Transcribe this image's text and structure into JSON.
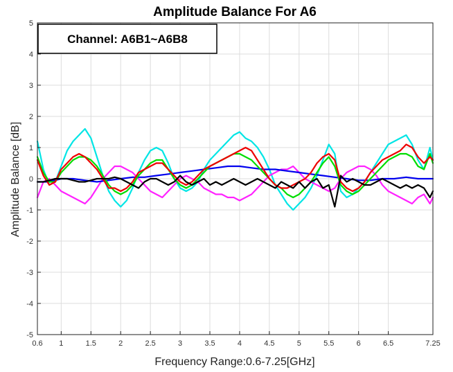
{
  "chart_data": {
    "type": "line",
    "title": "Amplitude Balance For A6",
    "xlabel": "Frequency Range:0.6-7.25[GHz]",
    "ylabel": "Amplitude Balance [dB]",
    "annotation": "Channel: A6B1~A6B8",
    "xlim": [
      0.6,
      7.25
    ],
    "ylim": [
      -5,
      5
    ],
    "grid": true,
    "x_ticks": [
      0.6,
      1,
      1.5,
      2,
      2.5,
      3,
      3.5,
      4,
      4.5,
      5,
      5.5,
      6,
      6.5,
      7.25
    ],
    "x_tick_labels": [
      "0.6",
      "1",
      "1.5",
      "2",
      "2.5",
      "3",
      "3.5",
      "4",
      "4.5",
      "5",
      "5.5",
      "6",
      "6.5",
      "7.25"
    ],
    "y_ticks": [
      -5,
      -4,
      -3,
      -2,
      -1,
      0,
      1,
      2,
      3,
      4,
      5
    ],
    "y_tick_labels": [
      "-5",
      "-4",
      "-3",
      "-2",
      "-1",
      "0",
      "1",
      "2",
      "3",
      "4",
      "5"
    ],
    "series": [
      {
        "color": "#00e5e5",
        "x": [
          0.6,
          0.7,
          0.8,
          0.9,
          1.0,
          1.1,
          1.2,
          1.3,
          1.4,
          1.5,
          1.6,
          1.7,
          1.8,
          1.9,
          2.0,
          2.1,
          2.2,
          2.3,
          2.4,
          2.5,
          2.6,
          2.7,
          2.8,
          2.9,
          3.0,
          3.1,
          3.2,
          3.3,
          3.4,
          3.5,
          3.6,
          3.7,
          3.8,
          3.9,
          4.0,
          4.1,
          4.2,
          4.3,
          4.4,
          4.5,
          4.6,
          4.7,
          4.8,
          4.9,
          5.0,
          5.1,
          5.2,
          5.3,
          5.4,
          5.5,
          5.6,
          5.7,
          5.8,
          5.9,
          6.0,
          6.1,
          6.2,
          6.3,
          6.4,
          6.5,
          6.6,
          6.7,
          6.8,
          6.9,
          7.0,
          7.1,
          7.2,
          7.25
        ],
        "y": [
          1.2,
          0.3,
          -0.2,
          -0.1,
          0.4,
          0.9,
          1.2,
          1.4,
          1.6,
          1.3,
          0.7,
          0.1,
          -0.4,
          -0.7,
          -0.9,
          -0.7,
          -0.3,
          0.2,
          0.6,
          0.9,
          1.0,
          0.9,
          0.5,
          0.0,
          -0.3,
          -0.4,
          -0.3,
          -0.1,
          0.3,
          0.6,
          0.8,
          1.0,
          1.2,
          1.4,
          1.5,
          1.3,
          1.2,
          1.0,
          0.7,
          0.3,
          -0.2,
          -0.5,
          -0.8,
          -1.0,
          -0.8,
          -0.6,
          -0.3,
          0.1,
          0.6,
          1.1,
          0.8,
          -0.4,
          -0.6,
          -0.5,
          -0.3,
          -0.1,
          0.2,
          0.5,
          0.8,
          1.1,
          1.2,
          1.3,
          1.4,
          1.1,
          0.6,
          0.3,
          1.0,
          0.6
        ]
      },
      {
        "color": "#ff22ff",
        "x": [
          0.6,
          0.7,
          0.8,
          0.9,
          1.0,
          1.1,
          1.2,
          1.3,
          1.4,
          1.5,
          1.6,
          1.7,
          1.8,
          1.9,
          2.0,
          2.1,
          2.2,
          2.3,
          2.4,
          2.5,
          2.6,
          2.7,
          2.8,
          2.9,
          3.0,
          3.1,
          3.2,
          3.3,
          3.4,
          3.5,
          3.6,
          3.7,
          3.8,
          3.9,
          4.0,
          4.1,
          4.2,
          4.3,
          4.4,
          4.5,
          4.6,
          4.7,
          4.8,
          4.9,
          5.0,
          5.1,
          5.2,
          5.3,
          5.4,
          5.5,
          5.6,
          5.7,
          5.8,
          5.9,
          6.0,
          6.1,
          6.2,
          6.3,
          6.4,
          6.5,
          6.6,
          6.7,
          6.8,
          6.9,
          7.0,
          7.1,
          7.2,
          7.25
        ],
        "y": [
          -0.6,
          -0.1,
          0.0,
          -0.2,
          -0.4,
          -0.5,
          -0.6,
          -0.7,
          -0.8,
          -0.6,
          -0.3,
          0.0,
          0.2,
          0.4,
          0.4,
          0.3,
          0.2,
          0.0,
          -0.2,
          -0.4,
          -0.5,
          -0.6,
          -0.4,
          -0.2,
          0.0,
          0.1,
          0.0,
          -0.1,
          -0.3,
          -0.4,
          -0.5,
          -0.5,
          -0.6,
          -0.6,
          -0.7,
          -0.6,
          -0.5,
          -0.3,
          -0.1,
          0.1,
          0.2,
          0.3,
          0.3,
          0.4,
          0.2,
          0.0,
          -0.1,
          -0.2,
          -0.3,
          -0.4,
          -0.3,
          0.0,
          0.2,
          0.3,
          0.4,
          0.4,
          0.3,
          0.1,
          -0.2,
          -0.4,
          -0.5,
          -0.6,
          -0.7,
          -0.8,
          -0.6,
          -0.5,
          -0.8,
          -0.6
        ]
      },
      {
        "color": "#0000ee",
        "x": [
          0.6,
          0.8,
          1.0,
          1.2,
          1.4,
          1.6,
          1.8,
          2.0,
          2.2,
          2.4,
          2.6,
          2.8,
          3.0,
          3.2,
          3.4,
          3.6,
          3.8,
          4.0,
          4.2,
          4.4,
          4.6,
          4.8,
          5.0,
          5.2,
          5.4,
          5.6,
          5.8,
          6.0,
          6.2,
          6.4,
          6.6,
          6.8,
          7.0,
          7.25
        ],
        "y": [
          -0.1,
          -0.1,
          0.0,
          0.0,
          -0.05,
          -0.1,
          -0.05,
          0.0,
          0.05,
          0.05,
          0.1,
          0.15,
          0.2,
          0.25,
          0.3,
          0.35,
          0.4,
          0.4,
          0.35,
          0.3,
          0.3,
          0.25,
          0.2,
          0.15,
          0.1,
          0.05,
          0.0,
          -0.05,
          -0.05,
          0.0,
          0.0,
          0.05,
          0.0,
          0.0
        ]
      },
      {
        "color": "#00dd00",
        "x": [
          0.6,
          0.7,
          0.8,
          0.9,
          1.0,
          1.1,
          1.2,
          1.3,
          1.4,
          1.5,
          1.6,
          1.7,
          1.8,
          1.9,
          2.0,
          2.1,
          2.2,
          2.3,
          2.4,
          2.5,
          2.6,
          2.7,
          2.8,
          2.9,
          3.0,
          3.1,
          3.2,
          3.3,
          3.4,
          3.5,
          3.6,
          3.7,
          3.8,
          3.9,
          4.0,
          4.1,
          4.2,
          4.3,
          4.4,
          4.5,
          4.6,
          4.7,
          4.8,
          4.9,
          5.0,
          5.1,
          5.2,
          5.3,
          5.4,
          5.5,
          5.6,
          5.7,
          5.8,
          5.9,
          6.0,
          6.1,
          6.2,
          6.3,
          6.4,
          6.5,
          6.6,
          6.7,
          6.8,
          6.9,
          7.0,
          7.1,
          7.2,
          7.25
        ],
        "y": [
          0.7,
          0.2,
          -0.1,
          -0.1,
          0.2,
          0.4,
          0.6,
          0.7,
          0.7,
          0.6,
          0.4,
          0.1,
          -0.2,
          -0.4,
          -0.5,
          -0.4,
          -0.2,
          0.1,
          0.3,
          0.5,
          0.6,
          0.6,
          0.3,
          0.0,
          -0.2,
          -0.3,
          -0.2,
          0.0,
          0.2,
          0.4,
          0.5,
          0.6,
          0.7,
          0.8,
          0.8,
          0.7,
          0.6,
          0.4,
          0.2,
          0.0,
          -0.2,
          -0.3,
          -0.5,
          -0.6,
          -0.5,
          -0.3,
          -0.1,
          0.2,
          0.5,
          0.7,
          0.4,
          -0.2,
          -0.4,
          -0.5,
          -0.4,
          -0.2,
          0.0,
          0.2,
          0.4,
          0.6,
          0.7,
          0.8,
          0.8,
          0.7,
          0.4,
          0.3,
          0.8,
          0.5
        ]
      },
      {
        "color": "#ee0000",
        "x": [
          0.6,
          0.7,
          0.8,
          0.9,
          1.0,
          1.1,
          1.2,
          1.3,
          1.4,
          1.5,
          1.6,
          1.7,
          1.8,
          1.9,
          2.0,
          2.1,
          2.2,
          2.3,
          2.4,
          2.5,
          2.6,
          2.7,
          2.8,
          2.9,
          3.0,
          3.1,
          3.2,
          3.3,
          3.4,
          3.5,
          3.6,
          3.7,
          3.8,
          3.9,
          4.0,
          4.1,
          4.2,
          4.3,
          4.4,
          4.5,
          4.6,
          4.7,
          4.8,
          4.9,
          5.0,
          5.1,
          5.2,
          5.3,
          5.4,
          5.5,
          5.6,
          5.7,
          5.8,
          5.9,
          6.0,
          6.1,
          6.2,
          6.3,
          6.4,
          6.5,
          6.6,
          6.7,
          6.8,
          6.9,
          7.0,
          7.1,
          7.2,
          7.25
        ],
        "y": [
          0.6,
          0.1,
          -0.2,
          -0.1,
          0.3,
          0.5,
          0.7,
          0.8,
          0.7,
          0.5,
          0.3,
          0.0,
          -0.3,
          -0.3,
          -0.4,
          -0.3,
          -0.1,
          0.2,
          0.3,
          0.4,
          0.5,
          0.5,
          0.3,
          0.1,
          -0.1,
          -0.2,
          -0.1,
          0.1,
          0.3,
          0.4,
          0.5,
          0.6,
          0.7,
          0.8,
          0.9,
          1.0,
          0.9,
          0.6,
          0.3,
          0.0,
          -0.2,
          -0.3,
          -0.3,
          -0.2,
          -0.1,
          0.0,
          0.2,
          0.5,
          0.7,
          0.8,
          0.6,
          -0.1,
          -0.3,
          -0.4,
          -0.3,
          -0.1,
          0.2,
          0.4,
          0.6,
          0.7,
          0.8,
          0.9,
          1.1,
          1.0,
          0.7,
          0.5,
          0.7,
          0.6
        ]
      },
      {
        "color": "#000000",
        "x": [
          0.6,
          0.7,
          0.8,
          0.9,
          1.0,
          1.1,
          1.2,
          1.3,
          1.4,
          1.5,
          1.6,
          1.7,
          1.8,
          1.9,
          2.0,
          2.1,
          2.2,
          2.3,
          2.4,
          2.5,
          2.6,
          2.7,
          2.8,
          2.9,
          3.0,
          3.1,
          3.2,
          3.3,
          3.4,
          3.5,
          3.6,
          3.7,
          3.8,
          3.9,
          4.0,
          4.1,
          4.2,
          4.3,
          4.4,
          4.5,
          4.6,
          4.7,
          4.8,
          4.9,
          5.0,
          5.1,
          5.2,
          5.3,
          5.4,
          5.5,
          5.6,
          5.7,
          5.8,
          5.9,
          6.0,
          6.1,
          6.2,
          6.3,
          6.4,
          6.5,
          6.6,
          6.7,
          6.8,
          6.9,
          7.0,
          7.1,
          7.2,
          7.25
        ],
        "y": [
          -0.1,
          -0.1,
          -0.05,
          0.0,
          0.0,
          0.0,
          -0.05,
          -0.1,
          -0.1,
          -0.05,
          0.0,
          0.0,
          0.0,
          0.05,
          0.0,
          -0.1,
          -0.2,
          -0.3,
          -0.1,
          0.0,
          0.0,
          -0.1,
          -0.2,
          -0.1,
          0.1,
          -0.1,
          -0.2,
          -0.1,
          0.0,
          -0.2,
          -0.1,
          -0.2,
          -0.1,
          0.0,
          -0.1,
          -0.2,
          -0.1,
          0.0,
          -0.1,
          -0.2,
          -0.3,
          -0.1,
          -0.2,
          -0.3,
          -0.1,
          -0.3,
          -0.1,
          0.0,
          -0.3,
          -0.2,
          -0.9,
          0.1,
          -0.1,
          0.0,
          -0.1,
          -0.2,
          -0.2,
          -0.1,
          0.0,
          -0.1,
          -0.2,
          -0.3,
          -0.2,
          -0.3,
          -0.2,
          -0.3,
          -0.6,
          -0.4
        ]
      }
    ]
  }
}
